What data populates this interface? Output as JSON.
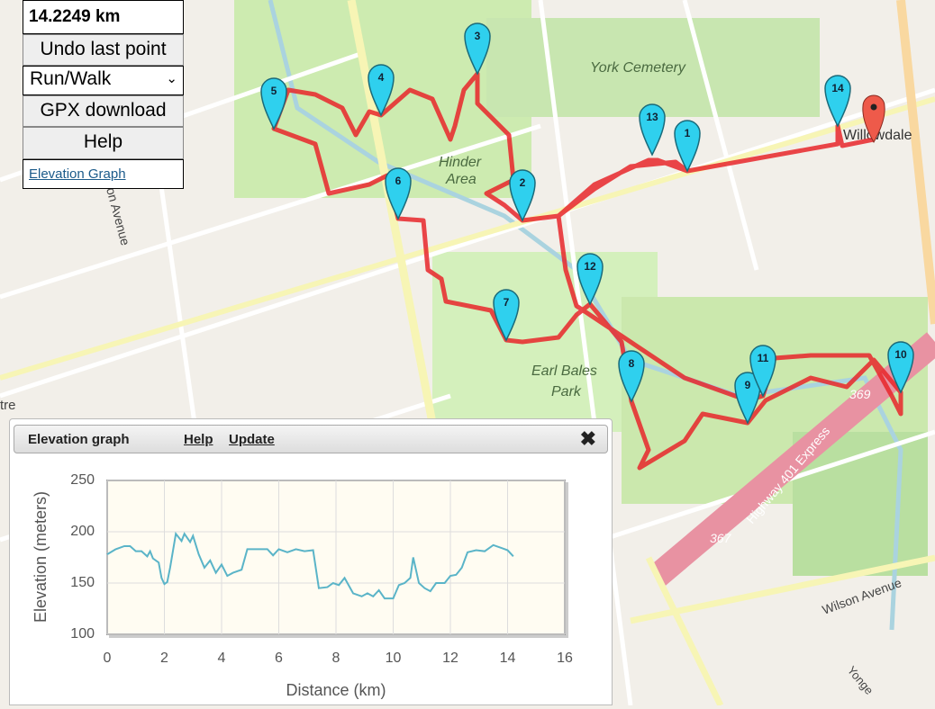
{
  "controls": {
    "distance": "14.2249 km",
    "undo": "Undo last point",
    "mode": "Run/Walk",
    "gpx": "GPX download",
    "help": "Help",
    "elevation_link": "Elevation Graph"
  },
  "map": {
    "labels": [
      "York Cemetery",
      "Hinder",
      "Area",
      "Earl Bales",
      "Park",
      "Willowdale",
      "Highway 401 Express",
      "367",
      "369",
      "Wilson Avenue",
      "on Avenue",
      "tre",
      "Yonge"
    ],
    "markers": [
      "1",
      "2",
      "3",
      "4",
      "5",
      "6",
      "7",
      "8",
      "9",
      "10",
      "11",
      "12",
      "13",
      "14"
    ]
  },
  "panel": {
    "title": "Elevation graph",
    "help": "Help",
    "update": "Update"
  },
  "chart_data": {
    "type": "line",
    "y_label": "Elevation (meters)",
    "x_label": "Distance (km)",
    "x": [
      0,
      0.3,
      0.6,
      0.8,
      1.0,
      1.2,
      1.4,
      1.5,
      1.6,
      1.8,
      1.9,
      2.0,
      2.1,
      2.2,
      2.4,
      2.6,
      2.7,
      2.9,
      3.0,
      3.2,
      3.4,
      3.6,
      3.8,
      4.0,
      4.2,
      4.4,
      4.7,
      4.9,
      5.3,
      5.6,
      5.8,
      6.0,
      6.3,
      6.6,
      6.9,
      7.2,
      7.4,
      7.7,
      7.9,
      8.1,
      8.3,
      8.4,
      8.6,
      8.9,
      9.1,
      9.3,
      9.5,
      9.7,
      10.0,
      10.2,
      10.4,
      10.6,
      10.7,
      10.9,
      11.1,
      11.3,
      11.5,
      11.8,
      12.0,
      12.2,
      12.4,
      12.6,
      12.9,
      13.2,
      13.5,
      13.8,
      14.0,
      14.2
    ],
    "series": [
      {
        "name": "Elevation",
        "color": "#5ab4c8",
        "values": [
          178,
          183,
          186,
          186,
          181,
          181,
          176,
          181,
          174,
          170,
          155,
          149,
          151,
          165,
          198,
          191,
          198,
          190,
          196,
          178,
          165,
          172,
          160,
          168,
          157,
          160,
          163,
          183,
          183,
          183,
          177,
          183,
          180,
          183,
          181,
          182,
          145,
          146,
          150,
          148,
          155,
          150,
          140,
          137,
          140,
          137,
          143,
          135,
          135,
          148,
          150,
          155,
          175,
          150,
          145,
          142,
          150,
          150,
          157,
          158,
          165,
          180,
          182,
          181,
          187,
          184,
          182,
          176
        ]
      }
    ],
    "xlim": [
      0,
      16
    ],
    "xticks": [
      0,
      2,
      4,
      6,
      8,
      10,
      12,
      14,
      16
    ],
    "ylim": [
      100,
      250
    ],
    "yticks": [
      100,
      150,
      200,
      250
    ],
    "grid": true
  }
}
